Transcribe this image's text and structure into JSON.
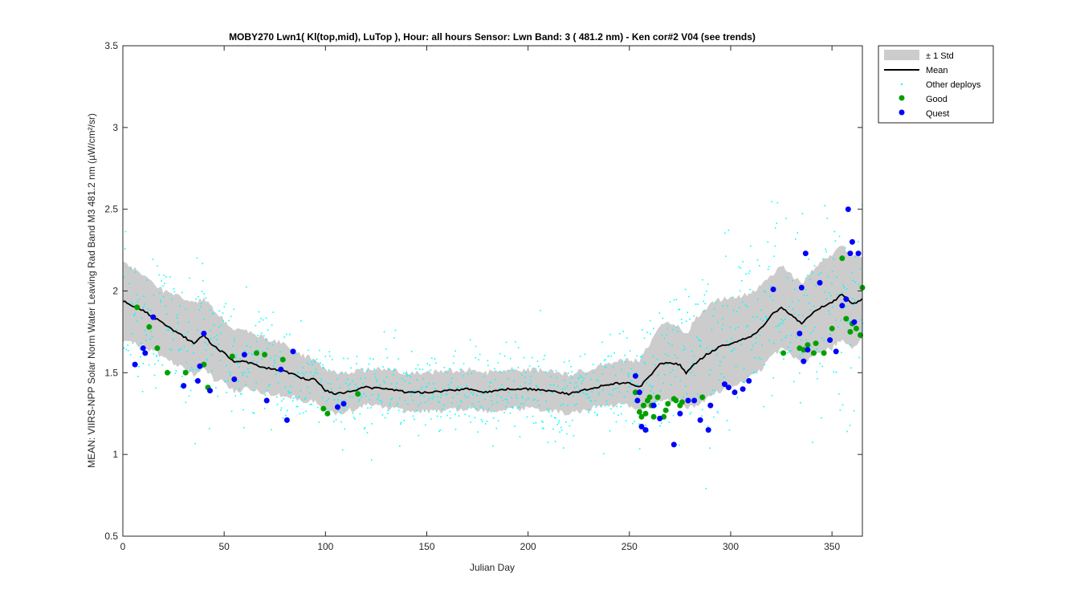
{
  "chart_data": {
    "type": "scatter",
    "title": "MOBY270   Lwn1( Kl(top,mid), LuTop ),    Hour: all hours  Sensor: Lwn Band: 3 ( 481.2 nm)  - Ken cor#2 V04 (see trends)",
    "xlabel": "Julian Day",
    "ylabel": "MEAN: VIIRS-NPP Solar Norm Water Leaving Rad Band M3 481.2 nm (µW/cm²/sr)",
    "xlim": [
      0,
      365
    ],
    "ylim": [
      0.5,
      3.5
    ],
    "x_ticks": [
      "0",
      "50",
      "100",
      "150",
      "200",
      "250",
      "300",
      "350"
    ],
    "x_tick_values": [
      0,
      50,
      100,
      150,
      200,
      250,
      300,
      350
    ],
    "y_ticks": [
      "0.5",
      "1",
      "1.5",
      "2",
      "2.5",
      "3",
      "3.5"
    ],
    "y_tick_values": [
      0.5,
      1,
      1.5,
      2,
      2.5,
      3,
      3.5
    ],
    "grid": false,
    "legend_position": "outside-top-right",
    "legend": [
      {
        "label": "± 1 Std",
        "kind": "band",
        "color": "#cccccc"
      },
      {
        "label": "Mean",
        "kind": "line",
        "color": "#000000"
      },
      {
        "label": "Other deploys",
        "kind": "dot",
        "color": "#00ffff"
      },
      {
        "label": "Good",
        "kind": "marker",
        "color": "#00a000"
      },
      {
        "label": "Quest",
        "kind": "marker",
        "color": "#0000ff"
      }
    ],
    "mean": {
      "x": [
        0,
        10,
        20,
        30,
        35,
        40,
        45,
        50,
        55,
        60,
        70,
        80,
        90,
        95,
        100,
        105,
        110,
        120,
        130,
        140,
        150,
        160,
        170,
        180,
        190,
        200,
        210,
        220,
        230,
        240,
        250,
        255,
        260,
        265,
        270,
        275,
        278,
        282,
        288,
        295,
        300,
        305,
        310,
        315,
        320,
        325,
        330,
        335,
        340,
        345,
        350,
        355,
        360,
        365
      ],
      "y": [
        1.94,
        1.88,
        1.8,
        1.72,
        1.68,
        1.73,
        1.66,
        1.62,
        1.56,
        1.57,
        1.53,
        1.51,
        1.46,
        1.46,
        1.39,
        1.37,
        1.38,
        1.41,
        1.4,
        1.38,
        1.38,
        1.39,
        1.4,
        1.38,
        1.4,
        1.4,
        1.39,
        1.37,
        1.4,
        1.43,
        1.44,
        1.41,
        1.48,
        1.55,
        1.56,
        1.55,
        1.5,
        1.55,
        1.61,
        1.66,
        1.68,
        1.7,
        1.72,
        1.77,
        1.85,
        1.9,
        1.85,
        1.8,
        1.86,
        1.9,
        1.93,
        1.98,
        1.92,
        1.95
      ]
    },
    "std_band": {
      "x": [
        0,
        10,
        20,
        30,
        35,
        40,
        45,
        50,
        55,
        60,
        70,
        80,
        90,
        95,
        100,
        105,
        110,
        120,
        130,
        140,
        150,
        160,
        170,
        180,
        190,
        200,
        210,
        220,
        230,
        240,
        250,
        255,
        260,
        265,
        270,
        275,
        278,
        282,
        288,
        295,
        300,
        305,
        310,
        315,
        320,
        325,
        330,
        335,
        340,
        345,
        350,
        355,
        360,
        365
      ],
      "upper": [
        2.18,
        2.1,
        2.0,
        1.95,
        1.93,
        1.95,
        1.88,
        1.82,
        1.76,
        1.76,
        1.71,
        1.68,
        1.6,
        1.58,
        1.52,
        1.5,
        1.5,
        1.52,
        1.52,
        1.5,
        1.5,
        1.51,
        1.52,
        1.5,
        1.52,
        1.52,
        1.51,
        1.49,
        1.52,
        1.56,
        1.58,
        1.57,
        1.68,
        1.78,
        1.8,
        1.78,
        1.73,
        1.83,
        1.9,
        1.95,
        1.96,
        1.97,
        1.98,
        2.03,
        2.1,
        2.15,
        2.1,
        2.05,
        2.12,
        2.18,
        2.22,
        2.28,
        2.2,
        2.22
      ],
      "lower": [
        1.7,
        1.66,
        1.6,
        1.52,
        1.48,
        1.52,
        1.46,
        1.44,
        1.38,
        1.4,
        1.38,
        1.36,
        1.33,
        1.33,
        1.27,
        1.25,
        1.26,
        1.3,
        1.29,
        1.26,
        1.26,
        1.27,
        1.28,
        1.26,
        1.28,
        1.28,
        1.27,
        1.25,
        1.28,
        1.3,
        1.3,
        1.26,
        1.29,
        1.33,
        1.33,
        1.33,
        1.28,
        1.29,
        1.34,
        1.39,
        1.42,
        1.44,
        1.47,
        1.52,
        1.6,
        1.65,
        1.6,
        1.55,
        1.6,
        1.63,
        1.65,
        1.7,
        1.65,
        1.7
      ]
    },
    "good": {
      "x": [
        7,
        13,
        17,
        22,
        31,
        40,
        42,
        54,
        66,
        70,
        79,
        99,
        101,
        116,
        253,
        255,
        256,
        257,
        258,
        259,
        260,
        261,
        262,
        264,
        267,
        268,
        269,
        272,
        273,
        275,
        276,
        286,
        326,
        334,
        336,
        338,
        341,
        342,
        346,
        350,
        355,
        357,
        359,
        360,
        362,
        364,
        365
      ],
      "y": [
        1.9,
        1.78,
        1.65,
        1.5,
        1.5,
        1.55,
        1.41,
        1.6,
        1.62,
        1.61,
        1.58,
        1.28,
        1.25,
        1.37,
        1.38,
        1.26,
        1.23,
        1.3,
        1.25,
        1.33,
        1.35,
        1.3,
        1.23,
        1.35,
        1.23,
        1.27,
        1.31,
        1.34,
        1.33,
        1.3,
        1.32,
        1.35,
        1.62,
        1.65,
        1.64,
        1.67,
        1.62,
        1.68,
        1.62,
        1.77,
        2.2,
        1.83,
        1.75,
        1.8,
        1.77,
        1.73,
        2.02
      ]
    },
    "quest": {
      "x": [
        6,
        10,
        11,
        15,
        30,
        37,
        38,
        40,
        43,
        55,
        60,
        71,
        78,
        81,
        84,
        106,
        109,
        253,
        254,
        255,
        256,
        258,
        262,
        265,
        272,
        275,
        279,
        282,
        285,
        289,
        290,
        297,
        299,
        302,
        306,
        309,
        321,
        334,
        335,
        336,
        337,
        338,
        344,
        349,
        352,
        355,
        357,
        358,
        359,
        360,
        361,
        363
      ],
      "y": [
        1.55,
        1.65,
        1.62,
        1.84,
        1.42,
        1.45,
        1.54,
        1.74,
        1.39,
        1.46,
        1.61,
        1.33,
        1.52,
        1.21,
        1.63,
        1.29,
        1.31,
        1.48,
        1.33,
        1.38,
        1.17,
        1.15,
        1.3,
        1.22,
        1.06,
        1.25,
        1.33,
        1.33,
        1.21,
        1.15,
        1.3,
        1.43,
        1.41,
        1.38,
        1.4,
        1.45,
        2.01,
        1.74,
        2.02,
        1.57,
        2.23,
        1.64,
        2.05,
        1.7,
        1.63,
        1.91,
        1.95,
        2.5,
        2.23,
        2.3,
        1.81,
        2.23
      ]
    }
  }
}
